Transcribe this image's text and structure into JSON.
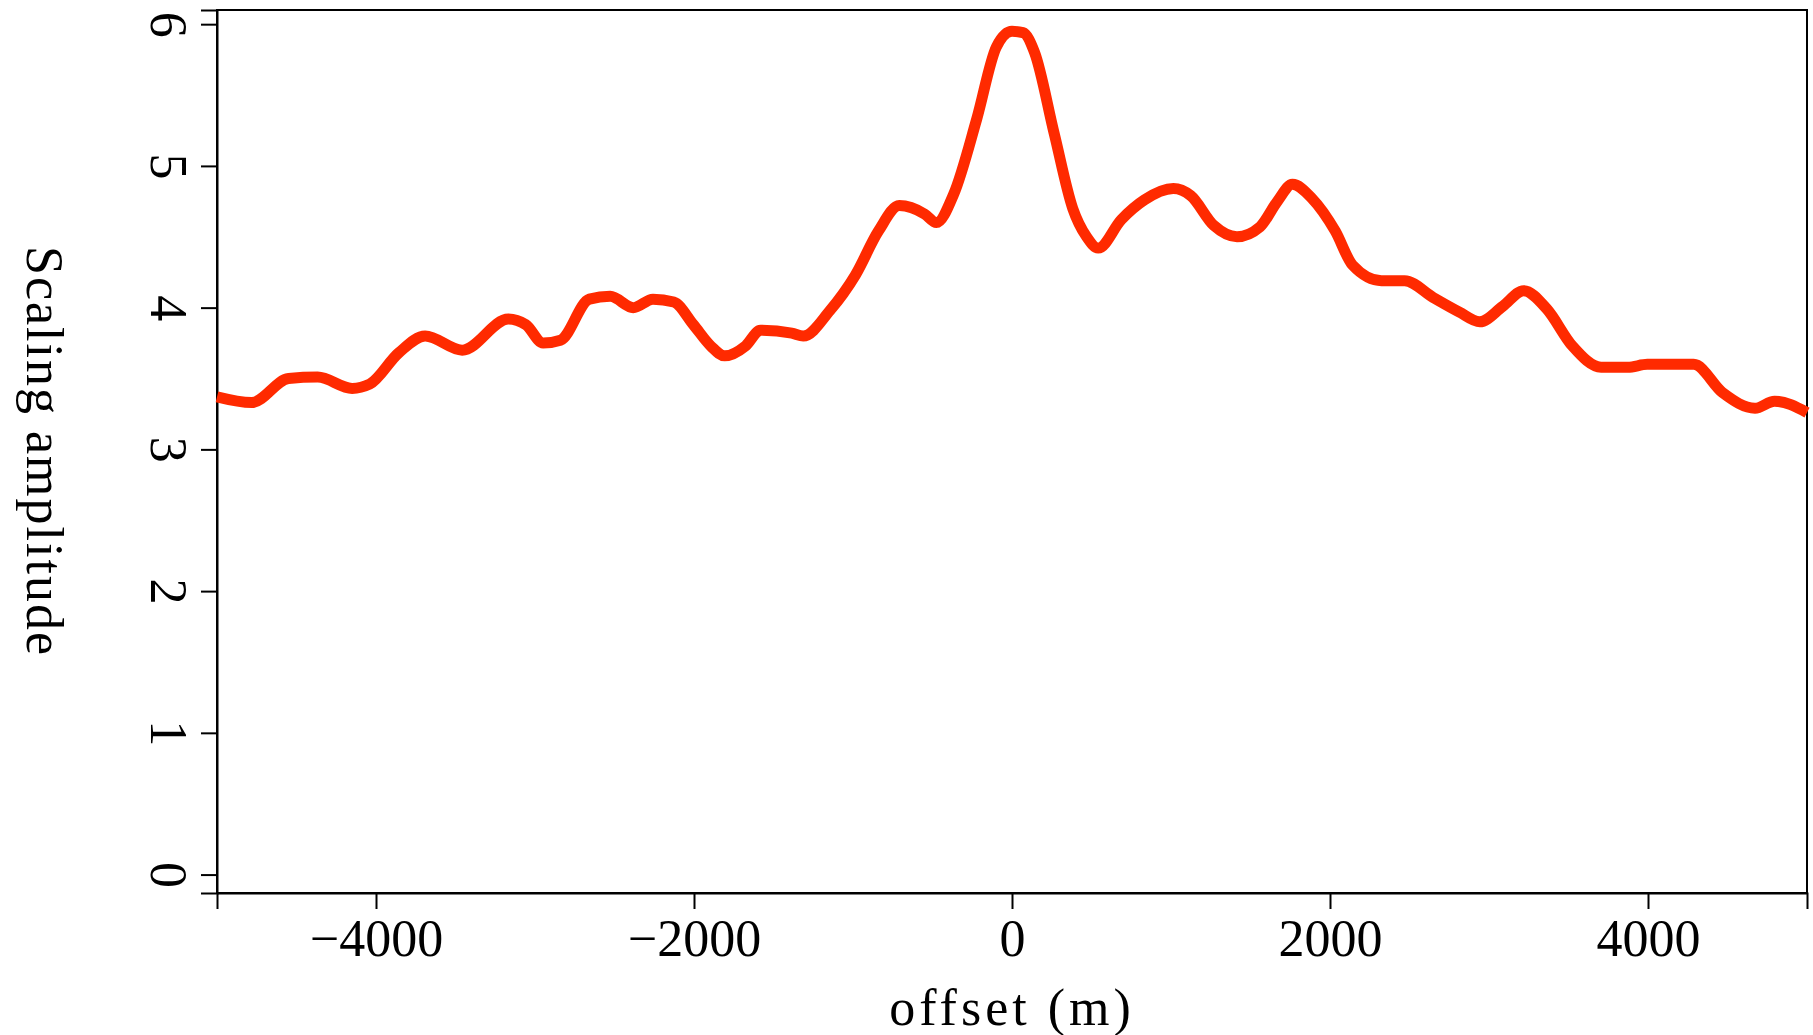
{
  "chart_data": {
    "type": "line",
    "xlabel": "offset (m)",
    "ylabel": "Scaling amplitude",
    "x": [
      -5000,
      -4782,
      -4550,
      -4367,
      -4150,
      -4040,
      -3858,
      -3691,
      -3458,
      -3167,
      -3058,
      -2949,
      -2840,
      -2658,
      -2527,
      -2382,
      -2258,
      -2127,
      -2004,
      -1895,
      -1807,
      -1676,
      -1582,
      -1385,
      -1313,
      -1145,
      -985,
      -840,
      -709,
      -549,
      -476,
      -367,
      -222,
      -98,
      0,
      69,
      142,
      265,
      382,
      469,
      542,
      687,
      833,
      1015,
      1124,
      1269,
      1415,
      1560,
      1669,
      1764,
      1887,
      2033,
      2142,
      2324,
      2469,
      2651,
      2811,
      2942,
      3087,
      3218,
      3364,
      3524,
      3705,
      3873,
      3996,
      4287,
      4469,
      4673,
      4796,
      5000
    ],
    "series": [
      {
        "color": "#ff2a00",
        "values": [
          3.37,
          3.33,
          3.5,
          3.51,
          3.43,
          3.46,
          3.68,
          3.8,
          3.7,
          3.92,
          3.88,
          3.75,
          3.77,
          4.06,
          4.08,
          4.0,
          4.06,
          4.04,
          3.88,
          3.73,
          3.66,
          3.73,
          3.84,
          3.82,
          3.8,
          3.98,
          4.23,
          4.54,
          4.72,
          4.66,
          4.6,
          4.8,
          5.33,
          5.84,
          5.95,
          5.94,
          5.8,
          5.23,
          4.7,
          4.5,
          4.42,
          4.62,
          4.76,
          4.84,
          4.79,
          4.58,
          4.5,
          4.57,
          4.75,
          4.87,
          4.77,
          4.54,
          4.3,
          4.19,
          4.19,
          4.07,
          3.97,
          3.9,
          4.01,
          4.12,
          3.99,
          3.73,
          3.58,
          3.58,
          3.6,
          3.6,
          3.4,
          3.29,
          3.34,
          3.26
        ]
      }
    ],
    "xlim": [
      -5000,
      5000
    ],
    "ylim": [
      -0.13,
      6.1
    ],
    "xticks": [
      {
        "value": -4000,
        "label": "−4000"
      },
      {
        "value": -2000,
        "label": "−2000"
      },
      0,
      2000,
      4000
    ],
    "yticks": [
      0,
      1,
      2,
      3,
      4,
      5,
      6
    ],
    "grid": false,
    "marker": "none",
    "line_style": "solid"
  }
}
